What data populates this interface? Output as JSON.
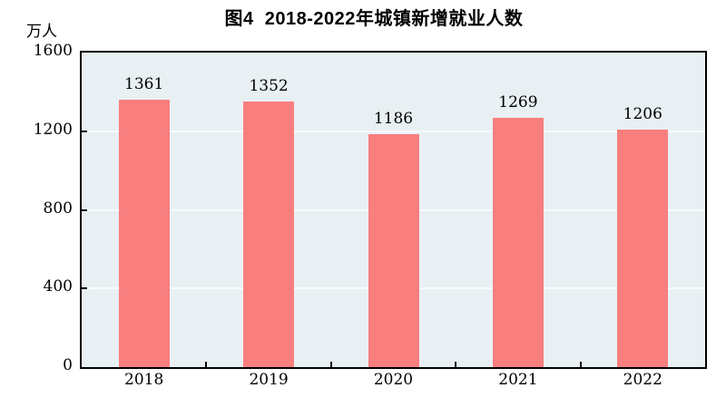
{
  "title": "图4  2018-2022年城镇新增就业人数",
  "unit_label": "万人",
  "colors": {
    "bar": "#F97E7E",
    "plot_background": "#E9F0F4",
    "gridline": "#F8FBFC",
    "frame": "#000000",
    "text": "#000000",
    "page_background": "#FFFFFF"
  },
  "chart_data": {
    "type": "bar",
    "title": "图4  2018-2022年城镇新增就业人数",
    "categories": [
      "2018",
      "2019",
      "2020",
      "2021",
      "2022"
    ],
    "values": [
      1361,
      1352,
      1186,
      1269,
      1206
    ],
    "xlabel": "",
    "ylabel": "万人",
    "ylim": [
      0,
      1600
    ],
    "yticks": [
      0,
      400,
      800,
      1200,
      1600
    ],
    "gridlines_at": [
      400,
      800,
      1200
    ],
    "grid": true,
    "legend_position": "none",
    "data_labels": true
  }
}
